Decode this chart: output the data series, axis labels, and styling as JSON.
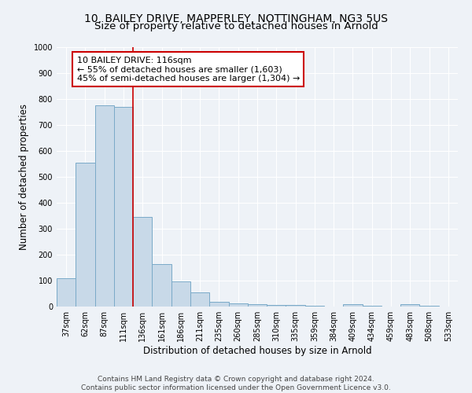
{
  "title": "10, BAILEY DRIVE, MAPPERLEY, NOTTINGHAM, NG3 5US",
  "subtitle": "Size of property relative to detached houses in Arnold",
  "xlabel": "Distribution of detached houses by size in Arnold",
  "ylabel": "Number of detached properties",
  "categories": [
    "37sqm",
    "62sqm",
    "87sqm",
    "111sqm",
    "136sqm",
    "161sqm",
    "186sqm",
    "211sqm",
    "235sqm",
    "260sqm",
    "285sqm",
    "310sqm",
    "335sqm",
    "359sqm",
    "384sqm",
    "409sqm",
    "434sqm",
    "459sqm",
    "483sqm",
    "508sqm",
    "533sqm"
  ],
  "values": [
    110,
    555,
    775,
    770,
    345,
    163,
    98,
    55,
    18,
    13,
    8,
    7,
    5,
    3,
    0,
    8,
    2,
    0,
    8,
    2,
    0
  ],
  "bar_color": "#c8d9e8",
  "bar_edge_color": "#7aaac8",
  "highlight_line_color": "#cc0000",
  "annotation_box_text": "10 BAILEY DRIVE: 116sqm\n← 55% of detached houses are smaller (1,603)\n45% of semi-detached houses are larger (1,304) →",
  "ylim": [
    0,
    1000
  ],
  "yticks": [
    0,
    100,
    200,
    300,
    400,
    500,
    600,
    700,
    800,
    900,
    1000
  ],
  "footer_line1": "Contains HM Land Registry data © Crown copyright and database right 2024.",
  "footer_line2": "Contains public sector information licensed under the Open Government Licence v3.0.",
  "bg_color": "#eef2f7",
  "grid_color": "#ffffff",
  "title_fontsize": 10,
  "subtitle_fontsize": 9.5,
  "axis_label_fontsize": 8.5,
  "tick_fontsize": 7,
  "footer_fontsize": 6.5,
  "annotation_fontsize": 8
}
